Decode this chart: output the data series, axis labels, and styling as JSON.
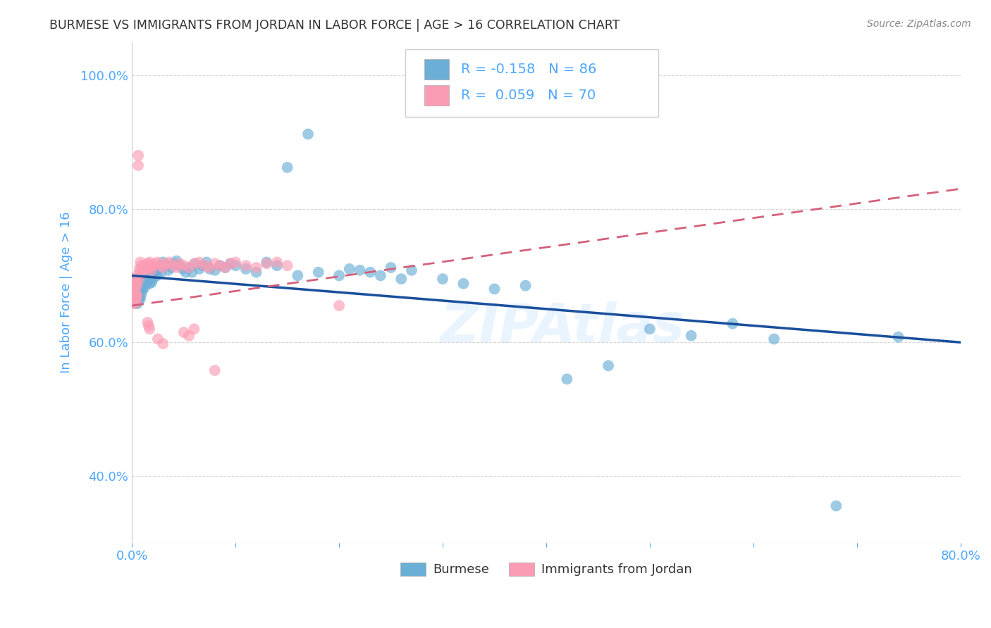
{
  "title": "BURMESE VS IMMIGRANTS FROM JORDAN IN LABOR FORCE | AGE > 16 CORRELATION CHART",
  "source": "Source: ZipAtlas.com",
  "ylabel": "In Labor Force | Age > 16",
  "xlim": [
    0.0,
    0.8
  ],
  "ylim": [
    0.3,
    1.05
  ],
  "xticks": [
    0.0,
    0.1,
    0.2,
    0.3,
    0.4,
    0.5,
    0.6,
    0.7,
    0.8
  ],
  "xticklabels": [
    "0.0%",
    "",
    "",
    "",
    "",
    "",
    "",
    "",
    "80.0%"
  ],
  "yticks": [
    0.4,
    0.6,
    0.8,
    1.0
  ],
  "yticklabels": [
    "40.0%",
    "60.0%",
    "80.0%",
    "100.0%"
  ],
  "watermark": "ZIPAtlas",
  "burmese_R": "-0.158",
  "burmese_N": "86",
  "jordan_R": "0.059",
  "jordan_N": "70",
  "blue_color": "#6baed6",
  "pink_color": "#fc9cb4",
  "blue_line_color": "#1a4f9c",
  "pink_line_color": "#d4607a",
  "axis_color": "#4da6ff",
  "title_color": "#333333",
  "background_color": "#ffffff",
  "burmese_x": [
    0.001,
    0.001,
    0.002,
    0.002,
    0.003,
    0.003,
    0.003,
    0.004,
    0.004,
    0.004,
    0.005,
    0.005,
    0.005,
    0.006,
    0.006,
    0.007,
    0.007,
    0.008,
    0.008,
    0.009,
    0.009,
    0.01,
    0.01,
    0.011,
    0.012,
    0.013,
    0.014,
    0.015,
    0.016,
    0.017,
    0.018,
    0.019,
    0.02,
    0.022,
    0.024,
    0.026,
    0.028,
    0.03,
    0.033,
    0.035,
    0.038,
    0.04,
    0.043,
    0.046,
    0.049,
    0.052,
    0.055,
    0.058,
    0.061,
    0.065,
    0.068,
    0.072,
    0.075,
    0.08,
    0.085,
    0.09,
    0.095,
    0.1,
    0.11,
    0.12,
    0.13,
    0.14,
    0.15,
    0.16,
    0.17,
    0.18,
    0.2,
    0.21,
    0.22,
    0.23,
    0.24,
    0.25,
    0.26,
    0.27,
    0.3,
    0.32,
    0.35,
    0.38,
    0.42,
    0.46,
    0.5,
    0.54,
    0.58,
    0.62,
    0.68,
    0.74
  ],
  "burmese_y": [
    0.68,
    0.67,
    0.672,
    0.668,
    0.675,
    0.665,
    0.66,
    0.678,
    0.672,
    0.66,
    0.683,
    0.67,
    0.658,
    0.675,
    0.662,
    0.685,
    0.668,
    0.68,
    0.665,
    0.69,
    0.672,
    0.688,
    0.678,
    0.695,
    0.682,
    0.69,
    0.688,
    0.7,
    0.695,
    0.688,
    0.702,
    0.69,
    0.695,
    0.705,
    0.7,
    0.71,
    0.705,
    0.72,
    0.715,
    0.708,
    0.712,
    0.718,
    0.722,
    0.715,
    0.71,
    0.705,
    0.712,
    0.705,
    0.718,
    0.71,
    0.715,
    0.72,
    0.71,
    0.708,
    0.715,
    0.712,
    0.718,
    0.715,
    0.71,
    0.705,
    0.72,
    0.715,
    0.862,
    0.7,
    0.912,
    0.705,
    0.7,
    0.71,
    0.708,
    0.705,
    0.7,
    0.712,
    0.695,
    0.708,
    0.695,
    0.688,
    0.68,
    0.685,
    0.545,
    0.565,
    0.62,
    0.61,
    0.628,
    0.605,
    0.355,
    0.608
  ],
  "jordan_x": [
    0.001,
    0.001,
    0.001,
    0.002,
    0.002,
    0.002,
    0.002,
    0.003,
    0.003,
    0.003,
    0.003,
    0.004,
    0.004,
    0.004,
    0.005,
    0.005,
    0.005,
    0.006,
    0.006,
    0.007,
    0.007,
    0.008,
    0.008,
    0.009,
    0.01,
    0.011,
    0.012,
    0.013,
    0.014,
    0.015,
    0.016,
    0.017,
    0.018,
    0.019,
    0.02,
    0.022,
    0.025,
    0.028,
    0.03,
    0.033,
    0.036,
    0.04,
    0.043,
    0.046,
    0.05,
    0.055,
    0.06,
    0.065,
    0.07,
    0.075,
    0.08,
    0.085,
    0.09,
    0.095,
    0.1,
    0.11,
    0.12,
    0.13,
    0.14,
    0.15,
    0.015,
    0.016,
    0.017,
    0.025,
    0.03,
    0.05,
    0.055,
    0.06,
    0.08,
    0.2
  ],
  "jordan_y": [
    0.68,
    0.672,
    0.66,
    0.69,
    0.675,
    0.665,
    0.658,
    0.695,
    0.68,
    0.67,
    0.66,
    0.688,
    0.672,
    0.662,
    0.7,
    0.685,
    0.67,
    0.88,
    0.865,
    0.71,
    0.695,
    0.72,
    0.705,
    0.715,
    0.71,
    0.708,
    0.715,
    0.712,
    0.71,
    0.718,
    0.715,
    0.72,
    0.712,
    0.708,
    0.715,
    0.718,
    0.72,
    0.715,
    0.712,
    0.718,
    0.72,
    0.715,
    0.712,
    0.718,
    0.715,
    0.712,
    0.718,
    0.72,
    0.715,
    0.712,
    0.718,
    0.715,
    0.712,
    0.718,
    0.72,
    0.715,
    0.712,
    0.718,
    0.72,
    0.715,
    0.63,
    0.625,
    0.62,
    0.605,
    0.598,
    0.615,
    0.61,
    0.62,
    0.558,
    0.655
  ]
}
